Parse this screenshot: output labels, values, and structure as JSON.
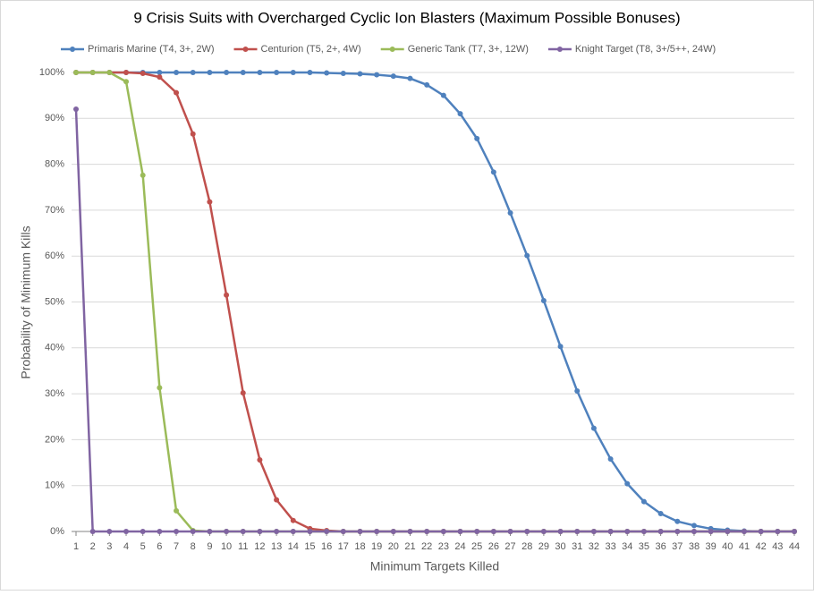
{
  "chart_data": {
    "type": "line",
    "title": "9 Crisis Suits with Overcharged Cyclic Ion Blasters (Maximum Possible Bonuses)",
    "xlabel": "Minimum Targets Killed",
    "ylabel": "Probability of Minimum Kills",
    "x": [
      1,
      2,
      3,
      4,
      5,
      6,
      7,
      8,
      9,
      10,
      11,
      12,
      13,
      14,
      15,
      16,
      17,
      18,
      19,
      20,
      21,
      22,
      23,
      24,
      25,
      26,
      27,
      28,
      29,
      30,
      31,
      32,
      33,
      34,
      35,
      36,
      37,
      38,
      39,
      40,
      41,
      42,
      43,
      44
    ],
    "xlim": [
      1,
      44
    ],
    "ylim": [
      0,
      100
    ],
    "yticks": [
      {
        "value": 0,
        "label": "0%"
      },
      {
        "value": 10,
        "label": "10%"
      },
      {
        "value": 20,
        "label": "20%"
      },
      {
        "value": 30,
        "label": "30%"
      },
      {
        "value": 40,
        "label": "40%"
      },
      {
        "value": 50,
        "label": "50%"
      },
      {
        "value": 60,
        "label": "60%"
      },
      {
        "value": 70,
        "label": "70%"
      },
      {
        "value": 80,
        "label": "80%"
      },
      {
        "value": 90,
        "label": "90%"
      },
      {
        "value": 100,
        "label": "100%"
      }
    ],
    "grid": true,
    "legend": "top",
    "series": [
      {
        "name": "Primaris Marine (T4, 3+, 2W)",
        "color": "#4f81bd",
        "values": [
          100,
          100,
          100,
          100,
          100,
          100,
          100,
          100,
          100,
          100,
          100,
          100,
          100,
          100,
          100,
          99.9,
          99.8,
          99.7,
          99.5,
          99.2,
          98.7,
          97.3,
          95,
          91,
          85.6,
          78.3,
          69.4,
          60.1,
          50.3,
          40.3,
          30.6,
          22.5,
          15.8,
          10.4,
          6.5,
          3.9,
          2.2,
          1.3,
          0.6,
          0.3,
          0.1,
          0,
          0,
          0
        ]
      },
      {
        "name": "Centurion (T5, 2+, 4W)",
        "color": "#c0504d",
        "values": [
          100,
          100,
          100,
          100,
          99.8,
          99,
          95.6,
          86.6,
          71.8,
          51.5,
          30.2,
          15.6,
          6.9,
          2.4,
          0.6,
          0.2,
          0,
          0,
          0,
          0,
          0,
          0,
          0,
          0,
          0,
          0,
          0,
          0,
          0,
          0,
          0,
          0,
          0,
          0,
          0,
          0,
          0,
          0,
          0,
          0,
          0,
          0,
          0,
          0
        ]
      },
      {
        "name": "Generic Tank (T7, 3+, 12W)",
        "color": "#9bbb59",
        "values": [
          100,
          100,
          100,
          98,
          77.6,
          31.3,
          4.5,
          0.2,
          0,
          0,
          0,
          0,
          0,
          0,
          0,
          0,
          0,
          0,
          0,
          0,
          0,
          0,
          0,
          0,
          0,
          0,
          0,
          0,
          0,
          0,
          0,
          0,
          0,
          0,
          0,
          0,
          0,
          0,
          0,
          0,
          0,
          0,
          0,
          0
        ]
      },
      {
        "name": "Knight Target (T8, 3+/5++, 24W)",
        "color": "#8064a2",
        "values": [
          92,
          0,
          0,
          0,
          0,
          0,
          0,
          0,
          0,
          0,
          0,
          0,
          0,
          0,
          0,
          0,
          0,
          0,
          0,
          0,
          0,
          0,
          0,
          0,
          0,
          0,
          0,
          0,
          0,
          0,
          0,
          0,
          0,
          0,
          0,
          0,
          0,
          0,
          0,
          0,
          0,
          0,
          0,
          0
        ]
      }
    ]
  }
}
